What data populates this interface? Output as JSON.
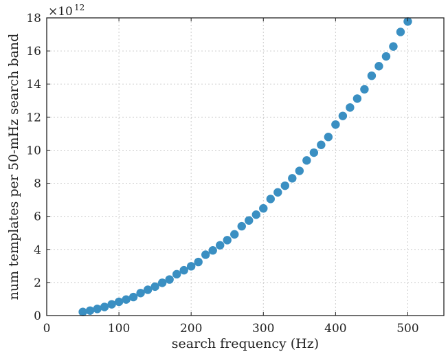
{
  "chart_data": {
    "type": "scatter",
    "title": "",
    "xlabel": "search frequency (Hz)",
    "ylabel": "num templates per 50-mHz search band",
    "y_multiplier": {
      "base": "×10",
      "exponent": "12"
    },
    "xlim": [
      0,
      550
    ],
    "ylim": [
      0,
      18
    ],
    "xticks": [
      0,
      100,
      200,
      300,
      400,
      500
    ],
    "yticks": [
      0,
      2,
      4,
      6,
      8,
      10,
      12,
      14,
      16,
      18
    ],
    "grid": true,
    "marker_color": "#3a8fc2",
    "series": [
      {
        "x": [
          50,
          60,
          70,
          80,
          90,
          100,
          110,
          120,
          130,
          140,
          150,
          160,
          170,
          180,
          190,
          200,
          210,
          220,
          230,
          240,
          250,
          260,
          270,
          280,
          290,
          300,
          310,
          320,
          330,
          340,
          350,
          360,
          370,
          380,
          390,
          400,
          410,
          420,
          430,
          440,
          450,
          460,
          470,
          480,
          490,
          500
        ],
        "y": [
          0.22,
          0.3,
          0.4,
          0.52,
          0.68,
          0.83,
          0.97,
          1.12,
          1.36,
          1.56,
          1.75,
          1.98,
          2.18,
          2.5,
          2.74,
          2.98,
          3.24,
          3.68,
          3.94,
          4.25,
          4.56,
          4.91,
          5.4,
          5.75,
          6.1,
          6.48,
          7.05,
          7.45,
          7.85,
          8.3,
          8.75,
          9.38,
          9.85,
          10.32,
          10.8,
          11.55,
          12.07,
          12.58,
          13.12,
          13.68,
          14.5,
          15.08,
          15.67,
          16.27,
          17.15,
          17.78
        ]
      }
    ]
  }
}
